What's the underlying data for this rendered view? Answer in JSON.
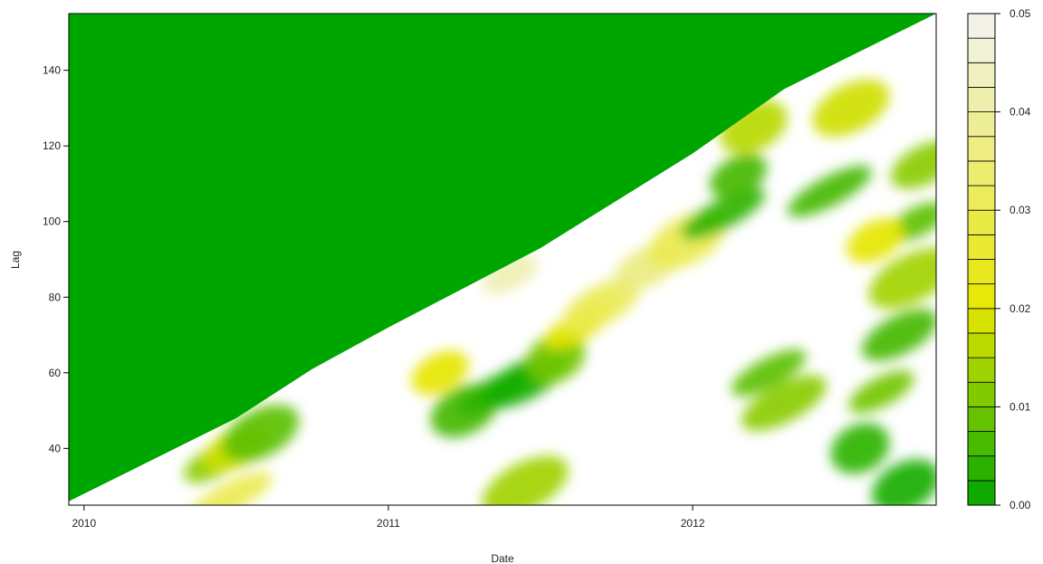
{
  "chart_data": {
    "type": "heatmap",
    "title": "",
    "xlabel": "Date",
    "ylabel": "Lag",
    "xlim": [
      2009.95,
      2012.8
    ],
    "ylim": [
      25,
      155
    ],
    "x_ticks": [
      {
        "value": 2010,
        "label": "2010"
      },
      {
        "value": 2011,
        "label": "2011"
      },
      {
        "value": 2012,
        "label": "2012"
      }
    ],
    "y_ticks": [
      {
        "value": 40,
        "label": "40"
      },
      {
        "value": 60,
        "label": "60"
      },
      {
        "value": 80,
        "label": "80"
      },
      {
        "value": 100,
        "label": "100"
      },
      {
        "value": 120,
        "label": "120"
      },
      {
        "value": 140,
        "label": "140"
      }
    ],
    "colorbar": {
      "range": [
        0,
        0.05
      ],
      "levels": 20,
      "tick_labels": [
        "0.00",
        "0.01",
        "0.02",
        "0.03",
        "0.04",
        "0.05"
      ],
      "tick_values": [
        0,
        0.01,
        0.02,
        0.03,
        0.04,
        0.05
      ]
    },
    "colors": {
      "low": "#00a600",
      "mid": "#e6e600",
      "high": "#f2f2f2",
      "background": "#ffffff",
      "frame": "#000000"
    },
    "regions": {
      "upper_left_no_data_value": 0.0,
      "boundary_line": [
        {
          "date": 2009.95,
          "lag": 26
        },
        {
          "date": 2010.5,
          "lag": 48
        },
        {
          "date": 2010.75,
          "lag": 61
        },
        {
          "date": 2011.0,
          "lag": 72
        },
        {
          "date": 2011.5,
          "lag": 93
        },
        {
          "date": 2012.0,
          "lag": 118
        },
        {
          "date": 2012.3,
          "lag": 135
        },
        {
          "date": 2012.8,
          "lag": 155
        }
      ],
      "patches": [
        {
          "date": 2010.42,
          "lag": 36,
          "value": 0.012
        },
        {
          "date": 2010.5,
          "lag": 40,
          "value": 0.018
        },
        {
          "date": 2010.58,
          "lag": 44,
          "value": 0.008
        },
        {
          "date": 2010.48,
          "lag": 27,
          "value": 0.03
        },
        {
          "date": 2011.17,
          "lag": 60,
          "value": 0.02
        },
        {
          "date": 2011.25,
          "lag": 50,
          "value": 0.006
        },
        {
          "date": 2011.35,
          "lag": 55,
          "value": 0.004
        },
        {
          "date": 2011.45,
          "lag": 58,
          "value": 0.002
        },
        {
          "date": 2011.55,
          "lag": 64,
          "value": 0.01
        },
        {
          "date": 2011.62,
          "lag": 72,
          "value": 0.02
        },
        {
          "date": 2011.7,
          "lag": 78,
          "value": 0.03
        },
        {
          "date": 2011.45,
          "lag": 30,
          "value": 0.014
        },
        {
          "date": 2011.4,
          "lag": 86,
          "value": 0.042
        },
        {
          "date": 2011.85,
          "lag": 88,
          "value": 0.036
        },
        {
          "date": 2011.98,
          "lag": 95,
          "value": 0.03
        },
        {
          "date": 2012.1,
          "lag": 102,
          "value": 0.004
        },
        {
          "date": 2012.15,
          "lag": 112,
          "value": 0.006
        },
        {
          "date": 2012.2,
          "lag": 125,
          "value": 0.016
        },
        {
          "date": 2012.25,
          "lag": 60,
          "value": 0.008
        },
        {
          "date": 2012.3,
          "lag": 52,
          "value": 0.012
        },
        {
          "date": 2012.55,
          "lag": 40,
          "value": 0.004
        },
        {
          "date": 2012.62,
          "lag": 55,
          "value": 0.01
        },
        {
          "date": 2012.68,
          "lag": 70,
          "value": 0.006
        },
        {
          "date": 2012.72,
          "lag": 85,
          "value": 0.014
        },
        {
          "date": 2012.74,
          "lag": 100,
          "value": 0.008
        },
        {
          "date": 2012.76,
          "lag": 115,
          "value": 0.012
        },
        {
          "date": 2012.52,
          "lag": 130,
          "value": 0.018
        },
        {
          "date": 2012.45,
          "lag": 108,
          "value": 0.006
        },
        {
          "date": 2012.6,
          "lag": 95,
          "value": 0.02
        },
        {
          "date": 2012.7,
          "lag": 30,
          "value": 0.002
        }
      ]
    }
  }
}
